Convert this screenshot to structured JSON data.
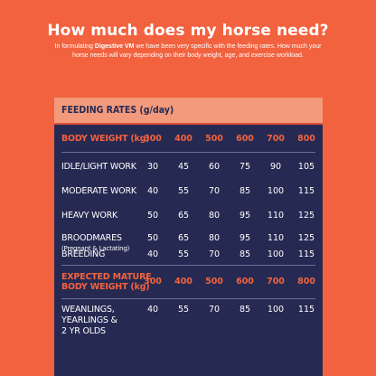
{
  "heading": "How much does my horse need?",
  "intro": {
    "part1": "In formulating ",
    "brand": "Digestive VM",
    "part2": " we have been very specific with the feeding rates. How much your horse needs will vary depending on their body weight, age, and exercise workload."
  },
  "table": {
    "title": "FEEDING RATES (g/day)",
    "header1": {
      "label": "BODY WEIGHT (kg)",
      "values": [
        "300",
        "400",
        "500",
        "600",
        "700",
        "800"
      ]
    },
    "rows": [
      {
        "label": "IDLE/LIGHT WORK",
        "sub": "",
        "values": [
          "30",
          "45",
          "60",
          "75",
          "90",
          "105"
        ]
      },
      {
        "label": "MODERATE WORK",
        "sub": "",
        "values": [
          "40",
          "55",
          "70",
          "85",
          "100",
          "115"
        ]
      },
      {
        "label": "HEAVY WORK",
        "sub": "",
        "values": [
          "50",
          "65",
          "80",
          "95",
          "110",
          "125"
        ]
      },
      {
        "label": "BROODMARES",
        "sub": "(Pregnant & Lactating)",
        "values": [
          "50",
          "65",
          "80",
          "95",
          "110",
          "125"
        ]
      },
      {
        "label": "BREEDING",
        "sub": "",
        "values": [
          "40",
          "55",
          "70",
          "85",
          "100",
          "115"
        ]
      }
    ],
    "header2": {
      "label_line1": "EXPECTED MATURE",
      "label_line2": "BODY WEIGHT (kg)",
      "values": [
        "300",
        "400",
        "500",
        "600",
        "700",
        "800"
      ]
    },
    "youngstock": {
      "line1": "WEANLINGS,",
      "line2": "YEARLINGS &",
      "line3": "2 YR OLDS",
      "values": [
        "40",
        "55",
        "70",
        "85",
        "100",
        "115"
      ]
    }
  }
}
